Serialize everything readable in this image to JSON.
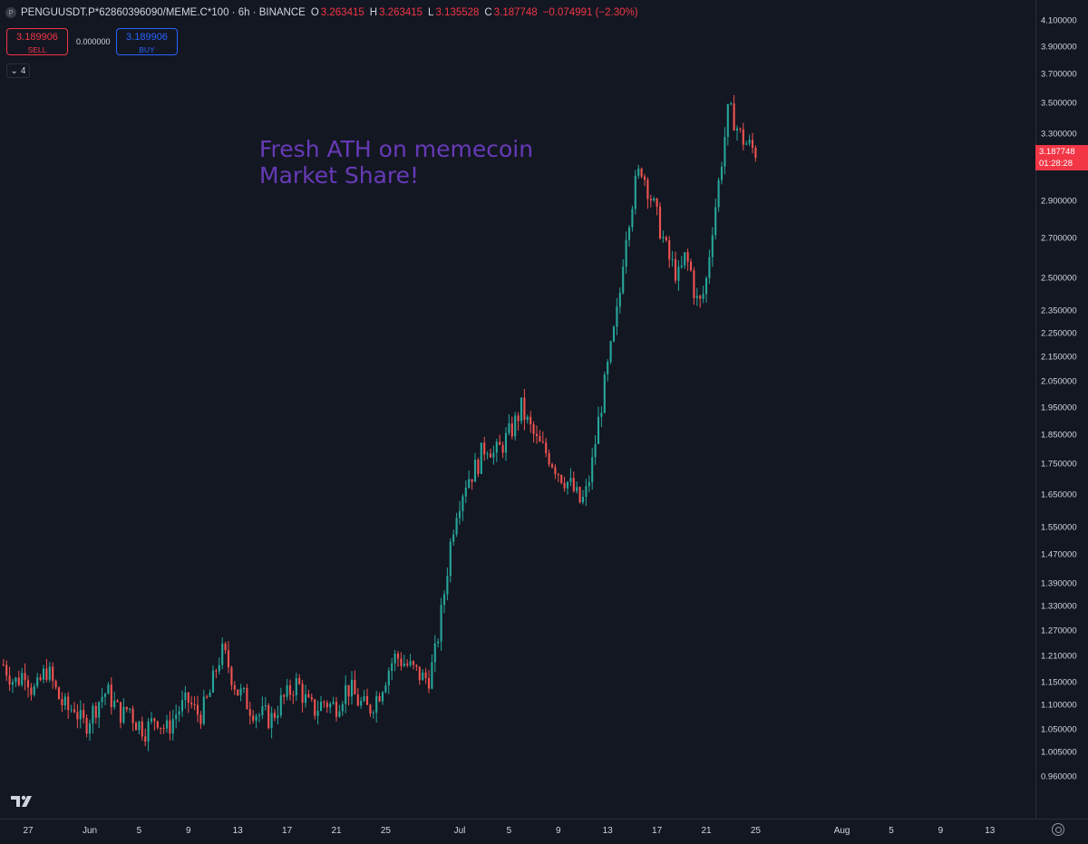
{
  "legend": {
    "symbol": "PENGUUSDT.P*62860396090/MEME.C*100 · 6h · BINANCE",
    "symbol_icon": "P",
    "open_label": "O",
    "open": "3.263415",
    "high_label": "H",
    "high": "3.263415",
    "low_label": "L",
    "low": "3.135528",
    "close_label": "C",
    "close": "3.187748",
    "change": "−0.074991 (−2.30%)"
  },
  "trade": {
    "sell_price": "3.189906",
    "sell_label": "SELL",
    "spread": "0.000000",
    "buy_price": "3.189906",
    "buy_label": "BUY"
  },
  "indicators_count": "4",
  "annotation": "Fresh ATH on memecoin\nMarket Share!",
  "last_price": {
    "value": "3.187748",
    "countdown": "01:28:28"
  },
  "colors": {
    "up": "#26a69a",
    "down": "#ef5350",
    "annotation": "#673ab7",
    "background": "#131722"
  },
  "chart_data": {
    "type": "candlestick",
    "interval": "6h",
    "y_scale": "log",
    "ylim": [
      0.92,
      4.18
    ],
    "price_ticks": [
      "4.100000",
      "3.900000",
      "3.700000",
      "3.500000",
      "3.300000",
      "2.900000",
      "2.700000",
      "2.500000",
      "2.350000",
      "2.250000",
      "2.150000",
      "2.050000",
      "1.950000",
      "1.850000",
      "1.750000",
      "1.650000",
      "1.550000",
      "1.470000",
      "1.390000",
      "1.330000",
      "1.270000",
      "1.210000",
      "1.150000",
      "1.100000",
      "1.050000",
      "1.005000",
      "0.960000"
    ],
    "time_ticks": [
      "27",
      "Jun",
      "5",
      "9",
      "13",
      "17",
      "21",
      "25",
      "Jul",
      "5",
      "9",
      "13",
      "17",
      "21",
      "25",
      "Aug",
      "5",
      "9",
      "13"
    ],
    "time_tick_days": [
      27,
      32,
      36,
      40,
      44,
      48,
      52,
      56,
      62,
      66,
      70,
      74,
      78,
      82,
      86,
      93,
      97,
      101,
      105
    ],
    "close_series": {
      "date_start": "May 25",
      "date_end": "Jul 25",
      "values": [
        1.19,
        1.17,
        1.15,
        1.16,
        1.18,
        1.14,
        1.13,
        1.16,
        1.18,
        1.15,
        1.12,
        1.1,
        1.09,
        1.1,
        1.07,
        1.06,
        1.08,
        1.1,
        1.12,
        1.13,
        1.11,
        1.09,
        1.08,
        1.1,
        1.07,
        1.06,
        1.05,
        1.06,
        1.08,
        1.06,
        1.05,
        1.07,
        1.09,
        1.1,
        1.11,
        1.09,
        1.08,
        1.1,
        1.13,
        1.18,
        1.22,
        1.2,
        1.16,
        1.13,
        1.12,
        1.1,
        1.09,
        1.08,
        1.08,
        1.07,
        1.09,
        1.11,
        1.12,
        1.14,
        1.15,
        1.12,
        1.1,
        1.09,
        1.1,
        1.11,
        1.1,
        1.1,
        1.12,
        1.14,
        1.13,
        1.11,
        1.1,
        1.09,
        1.11,
        1.13,
        1.16,
        1.19,
        1.21,
        1.2,
        1.19,
        1.18,
        1.17,
        1.16,
        1.16,
        1.2,
        1.28,
        1.38,
        1.5,
        1.6,
        1.65,
        1.7,
        1.72,
        1.75,
        1.8,
        1.82,
        1.78,
        1.8,
        1.83,
        1.86,
        1.9,
        1.95,
        1.9,
        1.86,
        1.82,
        1.8,
        1.78,
        1.75,
        1.72,
        1.7,
        1.68,
        1.65,
        1.62,
        1.66,
        1.75,
        1.88,
        2.0,
        2.12,
        2.25,
        2.4,
        2.7,
        2.85,
        3.0,
        3.1,
        3.0,
        2.9,
        2.8,
        2.7,
        2.6,
        2.55,
        2.5,
        2.6,
        2.55,
        2.4,
        2.38,
        2.5,
        2.75,
        2.95,
        3.2,
        3.45,
        3.4,
        3.3,
        3.25,
        3.22,
        3.19
      ]
    }
  }
}
